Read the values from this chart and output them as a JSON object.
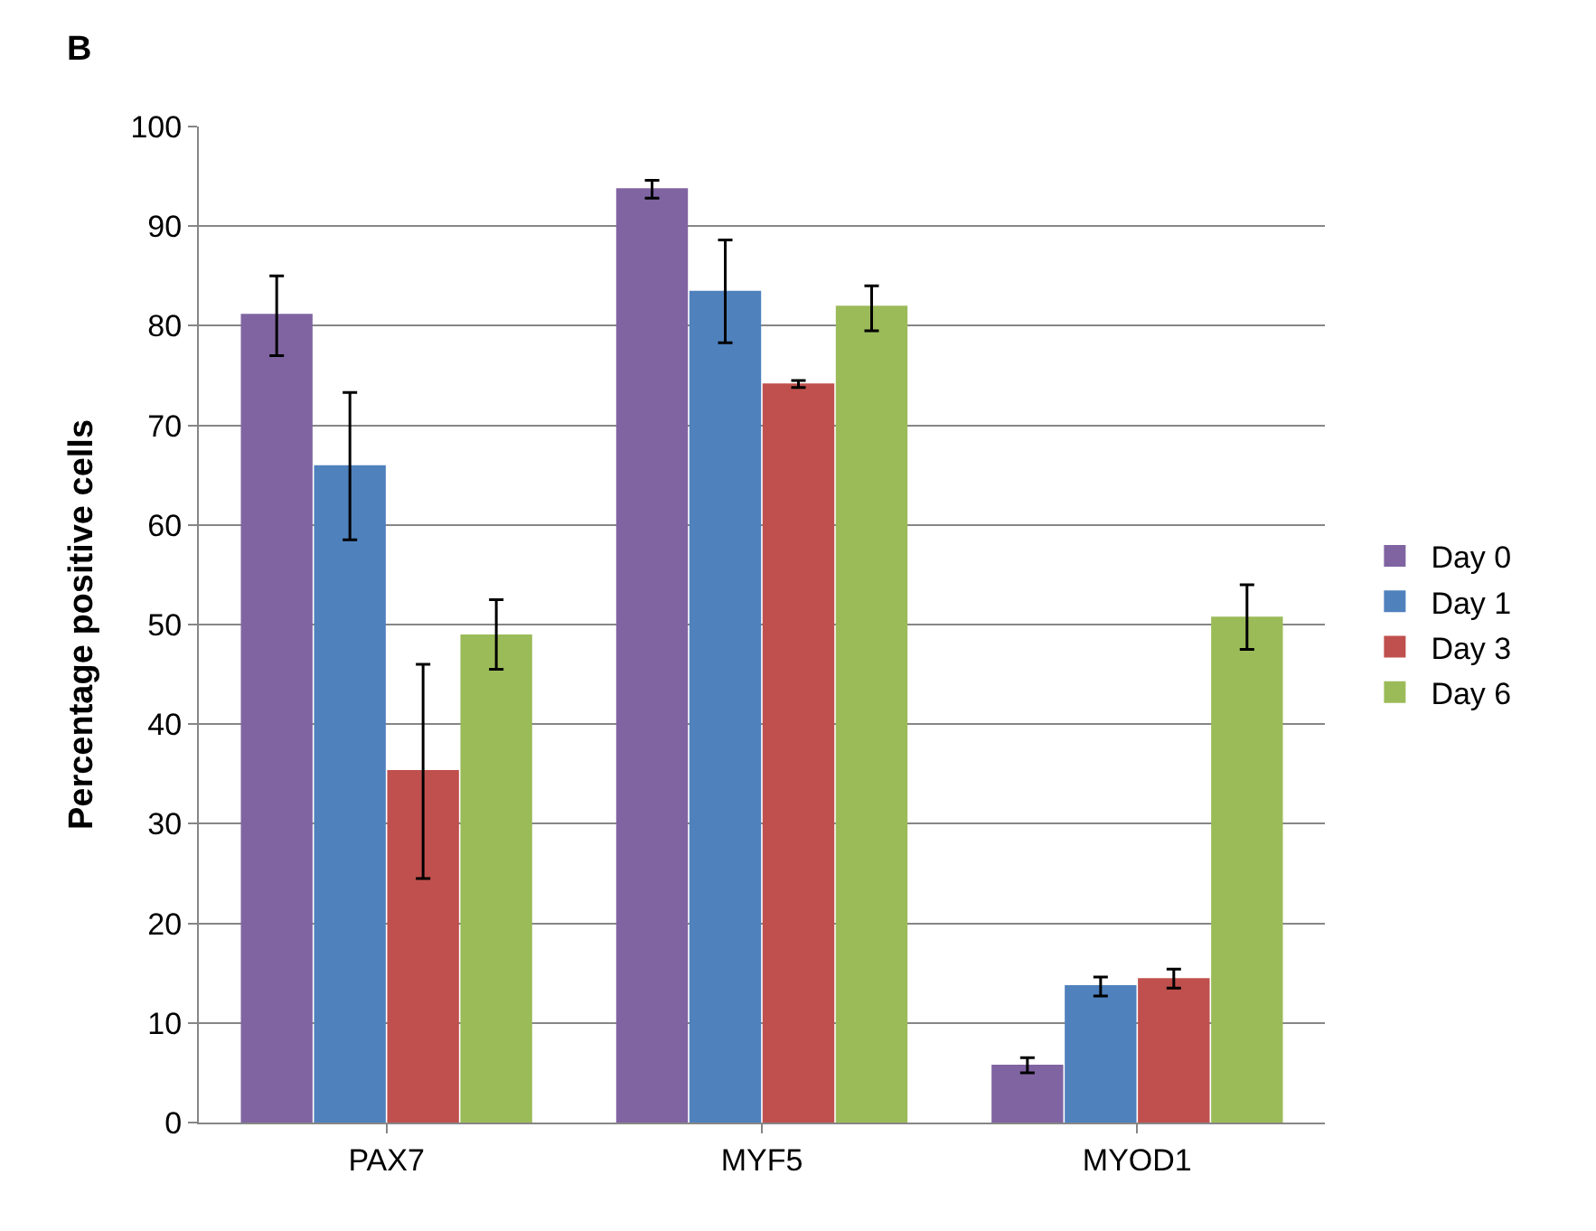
{
  "chart_data": {
    "type": "bar",
    "ylabel": "Percentage positive cells",
    "annotations": [
      "B"
    ],
    "categories": [
      "PAX7",
      "MYF5",
      "MYOD1"
    ],
    "series": [
      {
        "name": "Day 0",
        "color": "#8064a2",
        "values": [
          81.2,
          93.8,
          5.8
        ],
        "errors": [
          [
            77,
            85
          ],
          [
            92.8,
            94.6
          ],
          [
            5,
            6.5
          ]
        ]
      },
      {
        "name": "Day 1",
        "color": "#4f81bd",
        "values": [
          66,
          83.5,
          13.8
        ],
        "errors": [
          [
            58.5,
            73.3
          ],
          [
            78.3,
            88.6
          ],
          [
            12.7,
            14.6
          ]
        ]
      },
      {
        "name": "Day 3",
        "color": "#c0504d",
        "values": [
          35.4,
          74.2,
          14.5
        ],
        "errors": [
          [
            24.5,
            46
          ],
          [
            73.8,
            74.5
          ],
          [
            13.5,
            15.4
          ]
        ]
      },
      {
        "name": "Day 6",
        "color": "#9bbb59",
        "values": [
          49,
          82,
          50.8
        ],
        "errors": [
          [
            45.5,
            52.5
          ],
          [
            79.5,
            84
          ],
          [
            47.5,
            54
          ]
        ]
      }
    ],
    "ylim": [
      0,
      100
    ],
    "yticks": [
      0,
      10,
      20,
      30,
      40,
      50,
      60,
      70,
      80,
      90,
      100
    ],
    "grid": "y",
    "legend": "right"
  }
}
